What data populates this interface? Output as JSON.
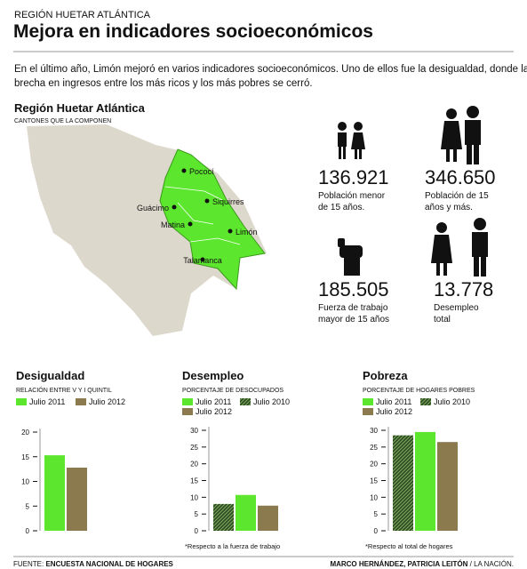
{
  "header": {
    "kicker": "REGIÓN HUETAR ATLÁNTICA",
    "title": "Mejora en indicadores socioeconómicos"
  },
  "intro": [
    "En el último año, Limón mejoró en varios indicadores socioeconómicos. Uno de ellos fue la desigualdad, donde la",
    "brecha en ingresos entre los más ricos y los más pobres se cerró."
  ],
  "map": {
    "title": "Región Huetar Atlántica",
    "subtitle": "CANTONES QUE LA COMPONEN",
    "places": [
      "Pococí",
      "Siquirres",
      "Guácimo",
      "Matina",
      "Limón",
      "Talamanca"
    ]
  },
  "stats": [
    {
      "value": "136.921",
      "label": [
        "Población menor",
        "de 15 años."
      ]
    },
    {
      "value": "346.650",
      "label": [
        "Población de 15",
        "años y más."
      ]
    },
    {
      "value": "185.505",
      "label": [
        "Fuerza de trabajo",
        "mayor de 15 años"
      ]
    },
    {
      "value": "13.778",
      "label": [
        "Desempleo",
        "total"
      ]
    }
  ],
  "chart_data": [
    {
      "type": "bar",
      "title": "Desigualdad",
      "subtitle": "RELACIÓN ENTRE V Y I QUINTIL",
      "series": [
        {
          "name": "Julio 2011",
          "color": "#5ce62e",
          "values": [
            15.3
          ]
        },
        {
          "name": "Julio 2012",
          "color": "#8a7a4e",
          "values": [
            12.8
          ]
        }
      ],
      "ylim": [
        0,
        20
      ],
      "yticks": [
        0,
        5,
        10,
        15,
        20
      ]
    },
    {
      "type": "bar",
      "title": "Desempleo",
      "subtitle": "PORCENTAJE DE DESOCUPADOS",
      "note": "*Respecto a la fuerza de trabajo",
      "series": [
        {
          "name": "Julio 2010",
          "color": "#2f4a22",
          "pattern": "hatch",
          "values": [
            8
          ]
        },
        {
          "name": "Julio 2011",
          "color": "#5ce62e",
          "values": [
            10.7
          ]
        },
        {
          "name": "Julio 2012",
          "color": "#8a7a4e",
          "values": [
            7.5
          ]
        }
      ],
      "ylim": [
        0,
        30
      ],
      "yticks": [
        0,
        5,
        10,
        15,
        20,
        25,
        30
      ]
    },
    {
      "type": "bar",
      "title": "Pobreza",
      "subtitle": "PORCENTAJE DE HOGARES POBRES",
      "note": "*Respecto al total de hogares",
      "series": [
        {
          "name": "Julio 2010",
          "color": "#2f4a22",
          "pattern": "hatch",
          "values": [
            28.5
          ]
        },
        {
          "name": "Julio 2011",
          "color": "#5ce62e",
          "values": [
            29.5
          ]
        },
        {
          "name": "Julio 2012",
          "color": "#8a7a4e",
          "values": [
            26.5
          ]
        }
      ],
      "ylim": [
        0,
        30
      ],
      "yticks": [
        0,
        5,
        10,
        15,
        20,
        25,
        30
      ]
    }
  ],
  "footer": {
    "source_label": "FUENTE:",
    "source": "ENCUESTA NACIONAL DE HOGARES",
    "authors": "MARCO HERNÁNDEZ, PATRICIA LEITÓN",
    "outlet": "/ LA NACIÓN."
  }
}
